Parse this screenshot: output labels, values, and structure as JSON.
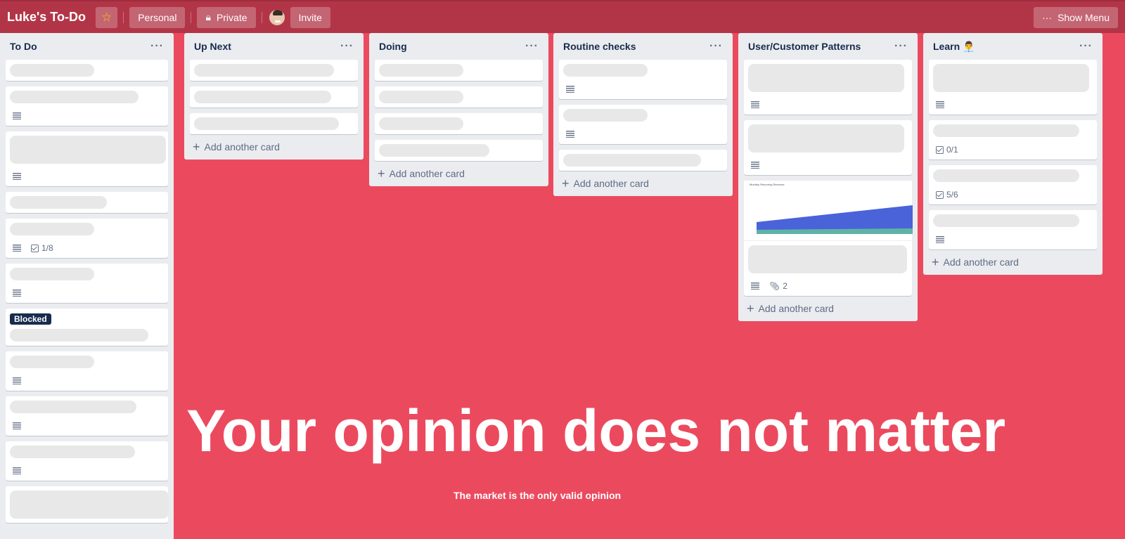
{
  "header": {
    "title": "Luke's To-Do",
    "star_icon": "star-icon",
    "personal": "Personal",
    "private": "Private",
    "invite": "Invite",
    "show_menu": "Show Menu"
  },
  "colors": {
    "board": "#eb4a5e",
    "header": "#b23547",
    "list": "#ebecf0",
    "label_blocked": "#172b4d"
  },
  "add_card": "Add another card",
  "lists": [
    {
      "title": "To Do",
      "cards": [
        {},
        {
          "desc": true
        },
        {
          "desc": true,
          "tall": true
        },
        {},
        {
          "desc": true,
          "checklist": "1/8"
        },
        {
          "desc": true
        },
        {
          "label": "Blocked"
        },
        {
          "desc": true
        },
        {
          "desc": true
        },
        {
          "desc": true
        },
        {
          "tall": true
        }
      ],
      "add": false
    },
    {
      "title": "Up Next",
      "cards": [
        {},
        {},
        {}
      ],
      "add": true
    },
    {
      "title": "Doing",
      "cards": [
        {},
        {},
        {},
        {}
      ],
      "add": true
    },
    {
      "title": "Routine checks",
      "cards": [
        {
          "desc": true
        },
        {
          "desc": true
        },
        {}
      ],
      "add": true
    },
    {
      "title": "User/Customer Patterns",
      "cards": [
        {
          "desc": true,
          "tall": true
        },
        {
          "desc": true,
          "tall": true
        },
        {
          "desc": true,
          "tall": true,
          "thumb": "Monthly Recurring Revenue",
          "attachments": "2"
        }
      ],
      "add": true
    },
    {
      "title": "Learn 👨‍💼",
      "cards": [
        {
          "desc": true,
          "tall": true
        },
        {
          "checklist": "0/1"
        },
        {
          "checklist": "5/6"
        },
        {
          "desc": true
        }
      ],
      "add": true
    }
  ],
  "headline": "Your opinion does not matter",
  "subline": "The market is the only valid opinion"
}
